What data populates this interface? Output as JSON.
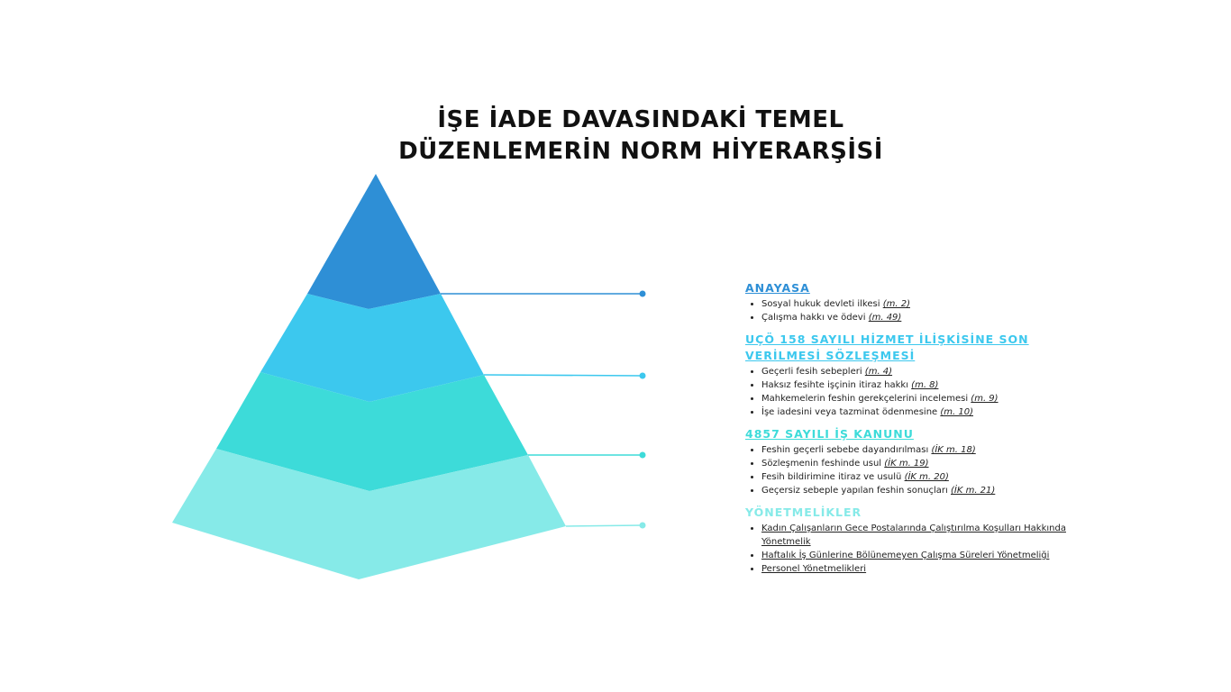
{
  "title": [
    "İŞE İADE DAVASINDAKİ TEMEL",
    "DÜZENLEMERİN NORM HİYERARŞİSİ"
  ],
  "sections": [
    {
      "heading": "ANAYASA",
      "color": "#2e8fd6",
      "items": [
        {
          "text": "Sosyal hukuk devleti ilkesi",
          "ref": "(m. 2)"
        },
        {
          "text": "Çalışma hakkı ve ödevi",
          "ref": "(m. 49)"
        }
      ]
    },
    {
      "heading": "UÇÖ 158 SAYILI HİZMET İLİŞKİSİNE SON VERİLMESİ SÖZLEŞMESİ",
      "color": "#3cc8ee",
      "items": [
        {
          "text": "Geçerli fesih sebepleri",
          "ref": "(m. 4)"
        },
        {
          "text": "Haksız fesihte işçinin itiraz hakkı",
          "ref": "(m. 8)"
        },
        {
          "text": "Mahkemelerin feshin gerekçelerini incelemesi",
          "ref": "(m. 9)"
        },
        {
          "text": "İşe iadesini veya tazminat ödenmesine",
          "ref": "(m. 10)"
        }
      ]
    },
    {
      "heading": "4857 SAYILI İŞ KANUNU",
      "color": "#3ddbd9",
      "items": [
        {
          "text": "Feshin geçerli sebebe dayandırılması",
          "ref": "(İK m. 18)"
        },
        {
          "text": "Sözleşmenin feshinde usul",
          "ref": "(İK m. 19)"
        },
        {
          "text": "Fesih bildirimine itiraz ve usulü",
          "ref": "(İK m. 20)"
        },
        {
          "text": "Geçersiz sebeple yapılan feshin sonuçları",
          "ref": "(İK m. 21)"
        }
      ]
    },
    {
      "heading": "YÖNETMELİKLER",
      "color": "#86eae8",
      "items": [
        {
          "link": "Kadın Çalışanların Gece Postalarında Çalıştırılma Koşulları Hakkında Yönetmelik"
        },
        {
          "link": "Haftalık İş Günlerine Bölünemeyen Çalışma Süreleri Yönetmeliği"
        },
        {
          "link": "Personel Yönetmelikleri"
        }
      ]
    }
  ]
}
